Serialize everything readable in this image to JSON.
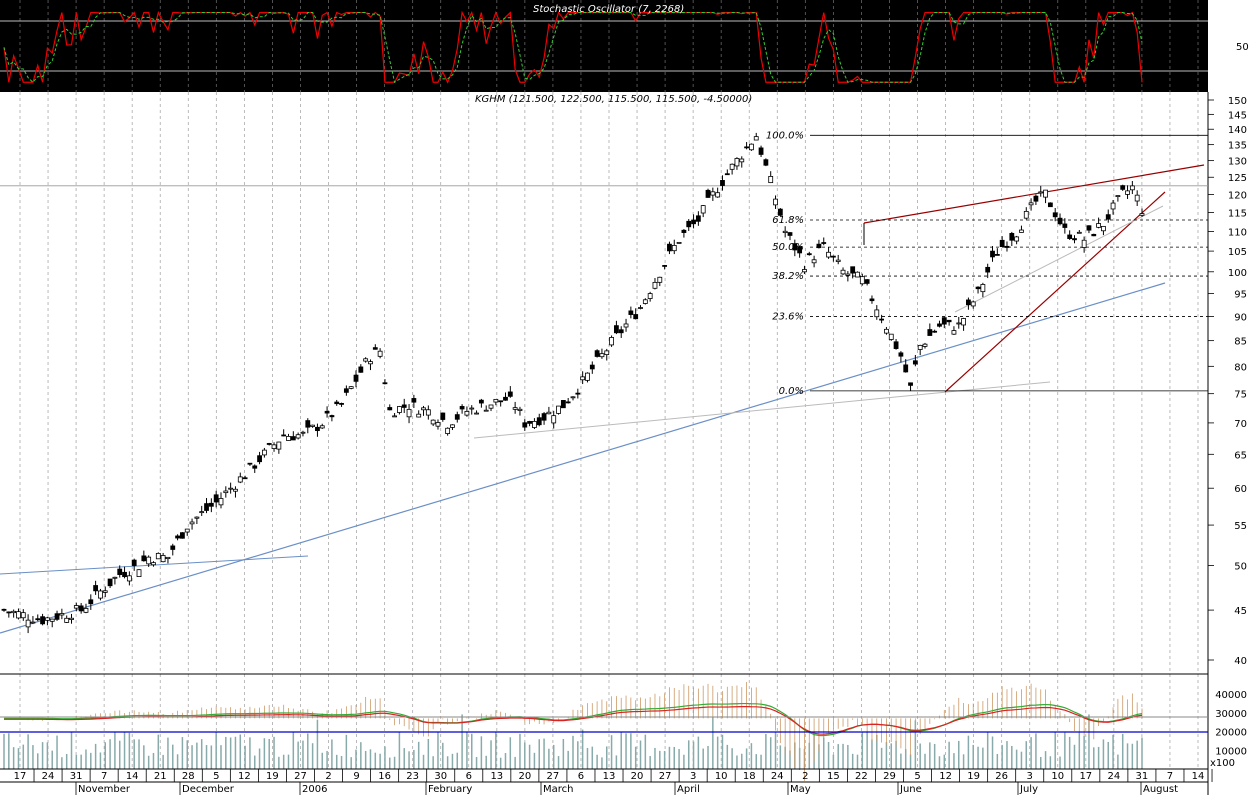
{
  "chart_data": {
    "type": "candlestick",
    "title": "KGHM (121.500, 122.500, 115.500, 115.500, -4.50000)",
    "ylim": [
      38,
      152
    ],
    "y_scale": "log",
    "y_ticks": [
      40,
      45,
      50,
      55,
      60,
      65,
      70,
      75,
      80,
      85,
      90,
      95,
      100,
      105,
      110,
      115,
      120,
      125,
      130,
      135,
      140,
      145,
      150
    ],
    "stochastic": {
      "title": "Stochastic Oscillator (7, 2268)",
      "ylim": [
        0,
        100
      ],
      "y_ticks": [
        50
      ],
      "levels": [
        20,
        80
      ]
    },
    "volume_panel": {
      "y_ticks": [
        10000,
        20000,
        30000,
        40000
      ],
      "unit_label": "x100"
    },
    "date_ticks": [
      "17",
      "24",
      "31",
      "7",
      "14",
      "21",
      "28",
      "5",
      "12",
      "19",
      "27",
      "2",
      "9",
      "16",
      "23",
      "30",
      "6",
      "13",
      "20",
      "27",
      "6",
      "13",
      "20",
      "27",
      "3",
      "10",
      "18",
      "24",
      "2",
      "15",
      "22",
      "29",
      "5",
      "12",
      "19",
      "26",
      "3",
      "10",
      "17",
      "24",
      "31",
      "7",
      "14"
    ],
    "month_labels": [
      "November",
      "December",
      "2006",
      "February",
      "March",
      "April",
      "May",
      "June",
      "July",
      "August"
    ],
    "fibonacci_levels": [
      {
        "label": "100.0%",
        "value": 138
      },
      {
        "label": "61.8%",
        "value": 113
      },
      {
        "label": "50.0%",
        "value": 106
      },
      {
        "label": "38.2%",
        "value": 99
      },
      {
        "label": "23.6%",
        "value": 90
      },
      {
        "label": "0.0%",
        "value": 75.5
      }
    ],
    "price_path": [
      [
        0,
        45
      ],
      [
        8,
        44
      ],
      [
        16,
        45
      ],
      [
        20,
        47
      ],
      [
        24,
        49
      ],
      [
        28,
        50
      ],
      [
        30,
        51
      ],
      [
        34,
        51
      ],
      [
        38,
        55
      ],
      [
        44,
        58
      ],
      [
        50,
        62
      ],
      [
        54,
        65
      ],
      [
        58,
        68
      ],
      [
        62,
        68
      ],
      [
        66,
        70
      ],
      [
        70,
        73
      ],
      [
        74,
        79
      ],
      [
        76,
        82
      ],
      [
        78,
        83
      ],
      [
        80,
        72
      ],
      [
        84,
        73
      ],
      [
        88,
        72
      ],
      [
        92,
        70
      ],
      [
        96,
        72
      ],
      [
        100,
        73
      ],
      [
        104,
        74
      ],
      [
        106,
        73
      ],
      [
        108,
        70
      ],
      [
        112,
        71
      ],
      [
        116,
        73
      ],
      [
        120,
        77
      ],
      [
        124,
        82
      ],
      [
        128,
        87
      ],
      [
        132,
        92
      ],
      [
        136,
        100
      ],
      [
        140,
        108
      ],
      [
        144,
        113
      ],
      [
        148,
        122
      ],
      [
        152,
        130
      ],
      [
        154,
        134
      ],
      [
        156,
        138
      ],
      [
        158,
        128
      ],
      [
        162,
        110
      ],
      [
        166,
        102
      ],
      [
        170,
        106
      ],
      [
        174,
        100
      ],
      [
        178,
        98
      ],
      [
        182,
        90
      ],
      [
        186,
        82
      ],
      [
        188,
        76
      ],
      [
        190,
        84
      ],
      [
        194,
        88
      ],
      [
        198,
        88
      ],
      [
        202,
        95
      ],
      [
        206,
        105
      ],
      [
        210,
        110
      ],
      [
        214,
        118
      ],
      [
        216,
        120
      ],
      [
        220,
        110
      ],
      [
        224,
        108
      ],
      [
        228,
        112
      ],
      [
        232,
        120
      ],
      [
        234,
        122
      ],
      [
        236,
        116
      ]
    ]
  }
}
